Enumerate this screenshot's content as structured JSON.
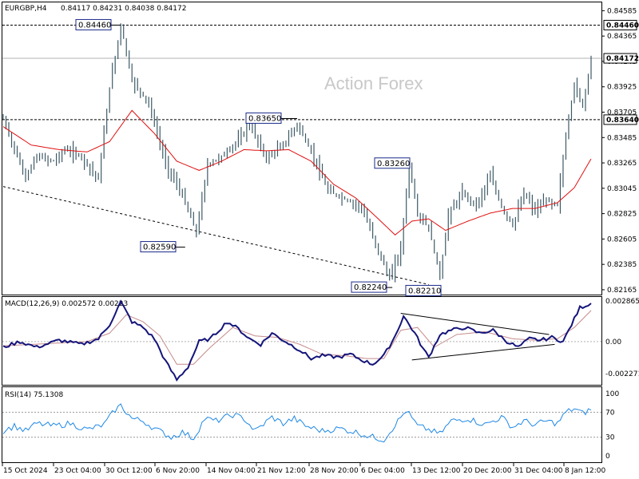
{
  "header": {
    "symbol": "EURGBP,H4",
    "ohlc": "0.84117 0.84231 0.84038 0.84172"
  },
  "watermark": "Action Forex",
  "chart_data": {
    "type": "candlestick",
    "price_axis": {
      "ticks": [
        "0.84585",
        "0.84365",
        "0.84145",
        "0.83925",
        "0.83705",
        "0.83485",
        "0.83265",
        "0.83045",
        "0.82825",
        "0.82605",
        "0.82385",
        "0.82165"
      ],
      "range": [
        0.8213,
        0.8465
      ]
    },
    "x_axis": {
      "labels": [
        "15 Oct 2024",
        "23 Oct 04:00",
        "30 Oct 12:00",
        "6 Nov 20:00",
        "14 Nov 04:00",
        "21 Nov 12:00",
        "28 Nov 20:00",
        "6 Dec 04:00",
        "13 Dec 12:00",
        "20 Dec 20:00",
        "31 Dec 04:00",
        "8 Jan 12:00"
      ]
    },
    "tags": [
      {
        "label": "0.84460",
        "value": 0.8446
      },
      {
        "label": "0.84172",
        "value": 0.84172
      },
      {
        "label": "0.83640",
        "value": 0.8364
      }
    ],
    "callouts": [
      {
        "label": "0.84460",
        "value": 0.8446
      },
      {
        "label": "0.83650",
        "value": 0.8365
      },
      {
        "label": "0.83260",
        "value": 0.8326
      },
      {
        "label": "0.82590",
        "value": 0.8259
      },
      {
        "label": "0.82240",
        "value": 0.8224
      },
      {
        "label": "0.82210",
        "value": 0.8221
      }
    ],
    "anchors": [
      {
        "bar": 0,
        "price": 0.8365
      },
      {
        "bar": 4,
        "price": 0.8338
      },
      {
        "bar": 8,
        "price": 0.8314
      },
      {
        "bar": 12,
        "price": 0.8332
      },
      {
        "bar": 18,
        "price": 0.8328
      },
      {
        "bar": 22,
        "price": 0.8338
      },
      {
        "bar": 28,
        "price": 0.8332
      },
      {
        "bar": 34,
        "price": 0.8312
      },
      {
        "bar": 38,
        "price": 0.8392
      },
      {
        "bar": 42,
        "price": 0.8446
      },
      {
        "bar": 46,
        "price": 0.8398
      },
      {
        "bar": 52,
        "price": 0.8378
      },
      {
        "bar": 58,
        "price": 0.8326
      },
      {
        "bar": 64,
        "price": 0.8298
      },
      {
        "bar": 69,
        "price": 0.8266
      },
      {
        "bar": 73,
        "price": 0.8325
      },
      {
        "bar": 78,
        "price": 0.8332
      },
      {
        "bar": 84,
        "price": 0.8346
      },
      {
        "bar": 88,
        "price": 0.836
      },
      {
        "bar": 94,
        "price": 0.833
      },
      {
        "bar": 100,
        "price": 0.8342
      },
      {
        "bar": 105,
        "price": 0.836
      },
      {
        "bar": 110,
        "price": 0.8336
      },
      {
        "bar": 116,
        "price": 0.8302
      },
      {
        "bar": 122,
        "price": 0.8295
      },
      {
        "bar": 128,
        "price": 0.8288
      },
      {
        "bar": 134,
        "price": 0.825
      },
      {
        "bar": 138,
        "price": 0.8226
      },
      {
        "bar": 142,
        "price": 0.8252
      },
      {
        "bar": 145,
        "price": 0.8325
      },
      {
        "bar": 148,
        "price": 0.8282
      },
      {
        "bar": 152,
        "price": 0.827
      },
      {
        "bar": 156,
        "price": 0.8228
      },
      {
        "bar": 159,
        "price": 0.8282
      },
      {
        "bar": 164,
        "price": 0.83
      },
      {
        "bar": 169,
        "price": 0.829
      },
      {
        "bar": 174,
        "price": 0.8315
      },
      {
        "bar": 178,
        "price": 0.8288
      },
      {
        "bar": 182,
        "price": 0.8272
      },
      {
        "bar": 186,
        "price": 0.83
      },
      {
        "bar": 190,
        "price": 0.8285
      },
      {
        "bar": 194,
        "price": 0.8294
      },
      {
        "bar": 198,
        "price": 0.829
      },
      {
        "bar": 201,
        "price": 0.835
      },
      {
        "bar": 204,
        "price": 0.8395
      },
      {
        "bar": 207,
        "price": 0.8375
      },
      {
        "bar": 210,
        "price": 0.8417
      }
    ],
    "ma_anchors": [
      {
        "bar": 0,
        "price": 0.8358
      },
      {
        "bar": 10,
        "price": 0.8342
      },
      {
        "bar": 20,
        "price": 0.8338
      },
      {
        "bar": 30,
        "price": 0.8336
      },
      {
        "bar": 38,
        "price": 0.8345
      },
      {
        "bar": 46,
        "price": 0.8372
      },
      {
        "bar": 54,
        "price": 0.8352
      },
      {
        "bar": 62,
        "price": 0.8328
      },
      {
        "bar": 70,
        "price": 0.832
      },
      {
        "bar": 78,
        "price": 0.8328
      },
      {
        "bar": 86,
        "price": 0.8338
      },
      {
        "bar": 94,
        "price": 0.8337
      },
      {
        "bar": 102,
        "price": 0.8338
      },
      {
        "bar": 110,
        "price": 0.8328
      },
      {
        "bar": 118,
        "price": 0.8308
      },
      {
        "bar": 126,
        "price": 0.8296
      },
      {
        "bar": 134,
        "price": 0.8278
      },
      {
        "bar": 140,
        "price": 0.8264
      },
      {
        "bar": 146,
        "price": 0.8276
      },
      {
        "bar": 152,
        "price": 0.8278
      },
      {
        "bar": 158,
        "price": 0.8268
      },
      {
        "bar": 166,
        "price": 0.8276
      },
      {
        "bar": 174,
        "price": 0.8283
      },
      {
        "bar": 182,
        "price": 0.8287
      },
      {
        "bar": 190,
        "price": 0.8287
      },
      {
        "bar": 198,
        "price": 0.8292
      },
      {
        "bar": 204,
        "price": 0.8305
      },
      {
        "bar": 210,
        "price": 0.833
      }
    ],
    "support_line": {
      "from": {
        "bar": 0,
        "price": 0.8306
      },
      "to": {
        "bar": 152,
        "price": 0.8221
      }
    },
    "macd": {
      "label": "MACD(12,26,9) 0.002572 0.00223",
      "ticks": [
        "0.002865",
        "0.00",
        "-0.002271"
      ],
      "range": [
        -0.003,
        0.0031
      ],
      "macd_anchors": [
        {
          "bar": 0,
          "v": -0.0004
        },
        {
          "bar": 6,
          "v": 0.0
        },
        {
          "bar": 12,
          "v": -0.0004
        },
        {
          "bar": 20,
          "v": 0.0001
        },
        {
          "bar": 28,
          "v": -0.0002
        },
        {
          "bar": 34,
          "v": 0.0002
        },
        {
          "bar": 38,
          "v": 0.0012
        },
        {
          "bar": 42,
          "v": 0.0028
        },
        {
          "bar": 46,
          "v": 0.0014
        },
        {
          "bar": 50,
          "v": 0.001
        },
        {
          "bar": 54,
          "v": 0.0002
        },
        {
          "bar": 58,
          "v": -0.0014
        },
        {
          "bar": 62,
          "v": -0.0027
        },
        {
          "bar": 66,
          "v": -0.0018
        },
        {
          "bar": 70,
          "v": 0.0
        },
        {
          "bar": 74,
          "v": 0.0002
        },
        {
          "bar": 80,
          "v": 0.0014
        },
        {
          "bar": 84,
          "v": 0.0009
        },
        {
          "bar": 88,
          "v": 0.0002
        },
        {
          "bar": 92,
          "v": -0.0002
        },
        {
          "bar": 96,
          "v": 0.0006
        },
        {
          "bar": 100,
          "v": 0.0001
        },
        {
          "bar": 106,
          "v": -0.0006
        },
        {
          "bar": 110,
          "v": -0.0012
        },
        {
          "bar": 114,
          "v": -0.001
        },
        {
          "bar": 120,
          "v": -0.0011
        },
        {
          "bar": 124,
          "v": -0.0009
        },
        {
          "bar": 128,
          "v": -0.0013
        },
        {
          "bar": 132,
          "v": -0.0016
        },
        {
          "bar": 136,
          "v": -0.001
        },
        {
          "bar": 140,
          "v": 0.0004
        },
        {
          "bar": 143,
          "v": 0.0018
        },
        {
          "bar": 147,
          "v": 0.0006
        },
        {
          "bar": 150,
          "v": -0.0005
        },
        {
          "bar": 152,
          "v": -0.0011
        },
        {
          "bar": 156,
          "v": 0.0005
        },
        {
          "bar": 160,
          "v": 0.0008
        },
        {
          "bar": 165,
          "v": 0.001
        },
        {
          "bar": 170,
          "v": 0.0006
        },
        {
          "bar": 175,
          "v": 0.0008
        },
        {
          "bar": 180,
          "v": 0.0
        },
        {
          "bar": 184,
          "v": -0.0004
        },
        {
          "bar": 188,
          "v": 0.0002
        },
        {
          "bar": 192,
          "v": 0.0001
        },
        {
          "bar": 196,
          "v": 0.0003
        },
        {
          "bar": 200,
          "v": 0.0
        },
        {
          "bar": 203,
          "v": 0.0012
        },
        {
          "bar": 206,
          "v": 0.0024
        },
        {
          "bar": 210,
          "v": 0.0027
        }
      ],
      "signal_anchors": [
        {
          "bar": 0,
          "v": -0.0003
        },
        {
          "bar": 10,
          "v": -0.0002
        },
        {
          "bar": 20,
          "v": -0.0001
        },
        {
          "bar": 30,
          "v": 0.0
        },
        {
          "bar": 38,
          "v": 0.0006
        },
        {
          "bar": 44,
          "v": 0.0019
        },
        {
          "bar": 50,
          "v": 0.0014
        },
        {
          "bar": 56,
          "v": 0.0004
        },
        {
          "bar": 62,
          "v": -0.0016
        },
        {
          "bar": 68,
          "v": -0.0016
        },
        {
          "bar": 74,
          "v": -0.0004
        },
        {
          "bar": 82,
          "v": 0.001
        },
        {
          "bar": 90,
          "v": 0.0004
        },
        {
          "bar": 98,
          "v": 0.0003
        },
        {
          "bar": 106,
          "v": -0.0002
        },
        {
          "bar": 114,
          "v": -0.0009
        },
        {
          "bar": 122,
          "v": -0.001
        },
        {
          "bar": 130,
          "v": -0.0012
        },
        {
          "bar": 136,
          "v": -0.0012
        },
        {
          "bar": 142,
          "v": 0.0008
        },
        {
          "bar": 148,
          "v": 0.001
        },
        {
          "bar": 154,
          "v": -0.0004
        },
        {
          "bar": 162,
          "v": 0.0005
        },
        {
          "bar": 172,
          "v": 0.0007
        },
        {
          "bar": 182,
          "v": 0.0002
        },
        {
          "bar": 190,
          "v": 0.0001
        },
        {
          "bar": 198,
          "v": 0.0002
        },
        {
          "bar": 204,
          "v": 0.001
        },
        {
          "bar": 210,
          "v": 0.0022
        }
      ],
      "triangle_upper": {
        "from": {
          "bar": 142,
          "v": 0.002
        },
        "to": {
          "bar": 195,
          "v": 0.0005
        }
      },
      "triangle_lower": {
        "from": {
          "bar": 146,
          "v": -0.0013
        },
        "to": {
          "bar": 197,
          "v": -0.0002
        }
      }
    },
    "rsi": {
      "label": "RSI(14) 75.1308",
      "ticks": [
        "100",
        "70",
        "30",
        "0"
      ],
      "levels": [
        70,
        30
      ],
      "anchors": [
        {
          "bar": 0,
          "v": 40
        },
        {
          "bar": 4,
          "v": 48
        },
        {
          "bar": 8,
          "v": 40
        },
        {
          "bar": 12,
          "v": 52
        },
        {
          "bar": 18,
          "v": 48
        },
        {
          "bar": 24,
          "v": 52
        },
        {
          "bar": 30,
          "v": 42
        },
        {
          "bar": 36,
          "v": 50
        },
        {
          "bar": 40,
          "v": 74
        },
        {
          "bar": 42,
          "v": 81
        },
        {
          "bar": 46,
          "v": 60
        },
        {
          "bar": 50,
          "v": 56
        },
        {
          "bar": 54,
          "v": 44
        },
        {
          "bar": 60,
          "v": 30
        },
        {
          "bar": 64,
          "v": 38
        },
        {
          "bar": 68,
          "v": 28
        },
        {
          "bar": 72,
          "v": 60
        },
        {
          "bar": 76,
          "v": 56
        },
        {
          "bar": 82,
          "v": 66
        },
        {
          "bar": 86,
          "v": 60
        },
        {
          "bar": 90,
          "v": 40
        },
        {
          "bar": 96,
          "v": 62
        },
        {
          "bar": 100,
          "v": 52
        },
        {
          "bar": 104,
          "v": 60
        },
        {
          "bar": 108,
          "v": 48
        },
        {
          "bar": 114,
          "v": 40
        },
        {
          "bar": 120,
          "v": 44
        },
        {
          "bar": 126,
          "v": 38
        },
        {
          "bar": 132,
          "v": 30
        },
        {
          "bar": 136,
          "v": 26
        },
        {
          "bar": 140,
          "v": 50
        },
        {
          "bar": 144,
          "v": 73
        },
        {
          "bar": 148,
          "v": 48
        },
        {
          "bar": 152,
          "v": 42
        },
        {
          "bar": 156,
          "v": 35
        },
        {
          "bar": 160,
          "v": 56
        },
        {
          "bar": 166,
          "v": 60
        },
        {
          "bar": 172,
          "v": 50
        },
        {
          "bar": 178,
          "v": 62
        },
        {
          "bar": 182,
          "v": 46
        },
        {
          "bar": 186,
          "v": 56
        },
        {
          "bar": 190,
          "v": 50
        },
        {
          "bar": 194,
          "v": 56
        },
        {
          "bar": 198,
          "v": 52
        },
        {
          "bar": 201,
          "v": 70
        },
        {
          "bar": 204,
          "v": 76
        },
        {
          "bar": 207,
          "v": 68
        },
        {
          "bar": 210,
          "v": 75
        }
      ]
    }
  }
}
